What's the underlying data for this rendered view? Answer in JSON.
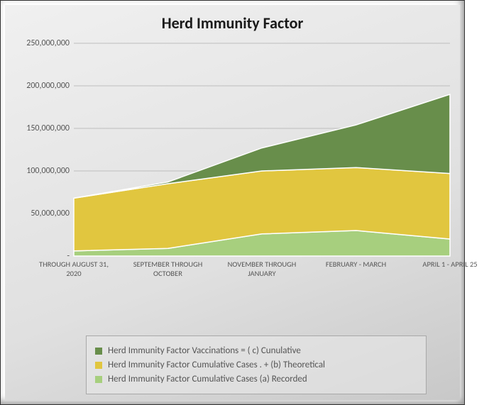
{
  "chart": {
    "type": "area-stacked",
    "title": "Herd Immunity Factor",
    "title_fontsize": 22,
    "background_gradient": [
      "#f0f0f0",
      "#e0e0e0",
      "#c8c8c8"
    ],
    "grid_color": "#bdbdbd",
    "text_color": "#555555",
    "categories": [
      "THROUGH AUGUST 31, 2020",
      "SEPTEMBER THROUGH OCTOBER",
      "NOVEMBER THROUGH JANUARY",
      "FEBRUARY - MARCH",
      "APRIL 1 - APRIL 25"
    ],
    "series": [
      {
        "name": "Herd Immunity Factor  Cumulative Cases   (a)  Recorded",
        "color": "#a7cf7e",
        "values": [
          6000000,
          9000000,
          26000000,
          30000000,
          20000000
        ]
      },
      {
        "name": "Herd Immunity Factor  Cumulative Cases  .  +   (b) Theoretical",
        "color": "#e1c63f",
        "values": [
          62000000,
          76000000,
          74000000,
          74000000,
          77000000
        ]
      },
      {
        "name": "Herd Immunity Factor Vaccinations =   ( c) Cunulative",
        "color": "#688e4b",
        "values": [
          0,
          2000000,
          27000000,
          50000000,
          93000000
        ]
      }
    ],
    "ylim": [
      0,
      250000000
    ],
    "ytick_step": 50000000,
    "ylabels": [
      "-",
      "50,000,000",
      "100,000,000",
      "150,000,000",
      "200,000,000",
      "250,000,000"
    ],
    "axis_fontsize": 12,
    "legend_border_color": "#a8a8a8",
    "legend_bg": "rgba(232,232,232,0.6)",
    "series_border_color": "#ffffff",
    "series_border_width": 1.5
  }
}
